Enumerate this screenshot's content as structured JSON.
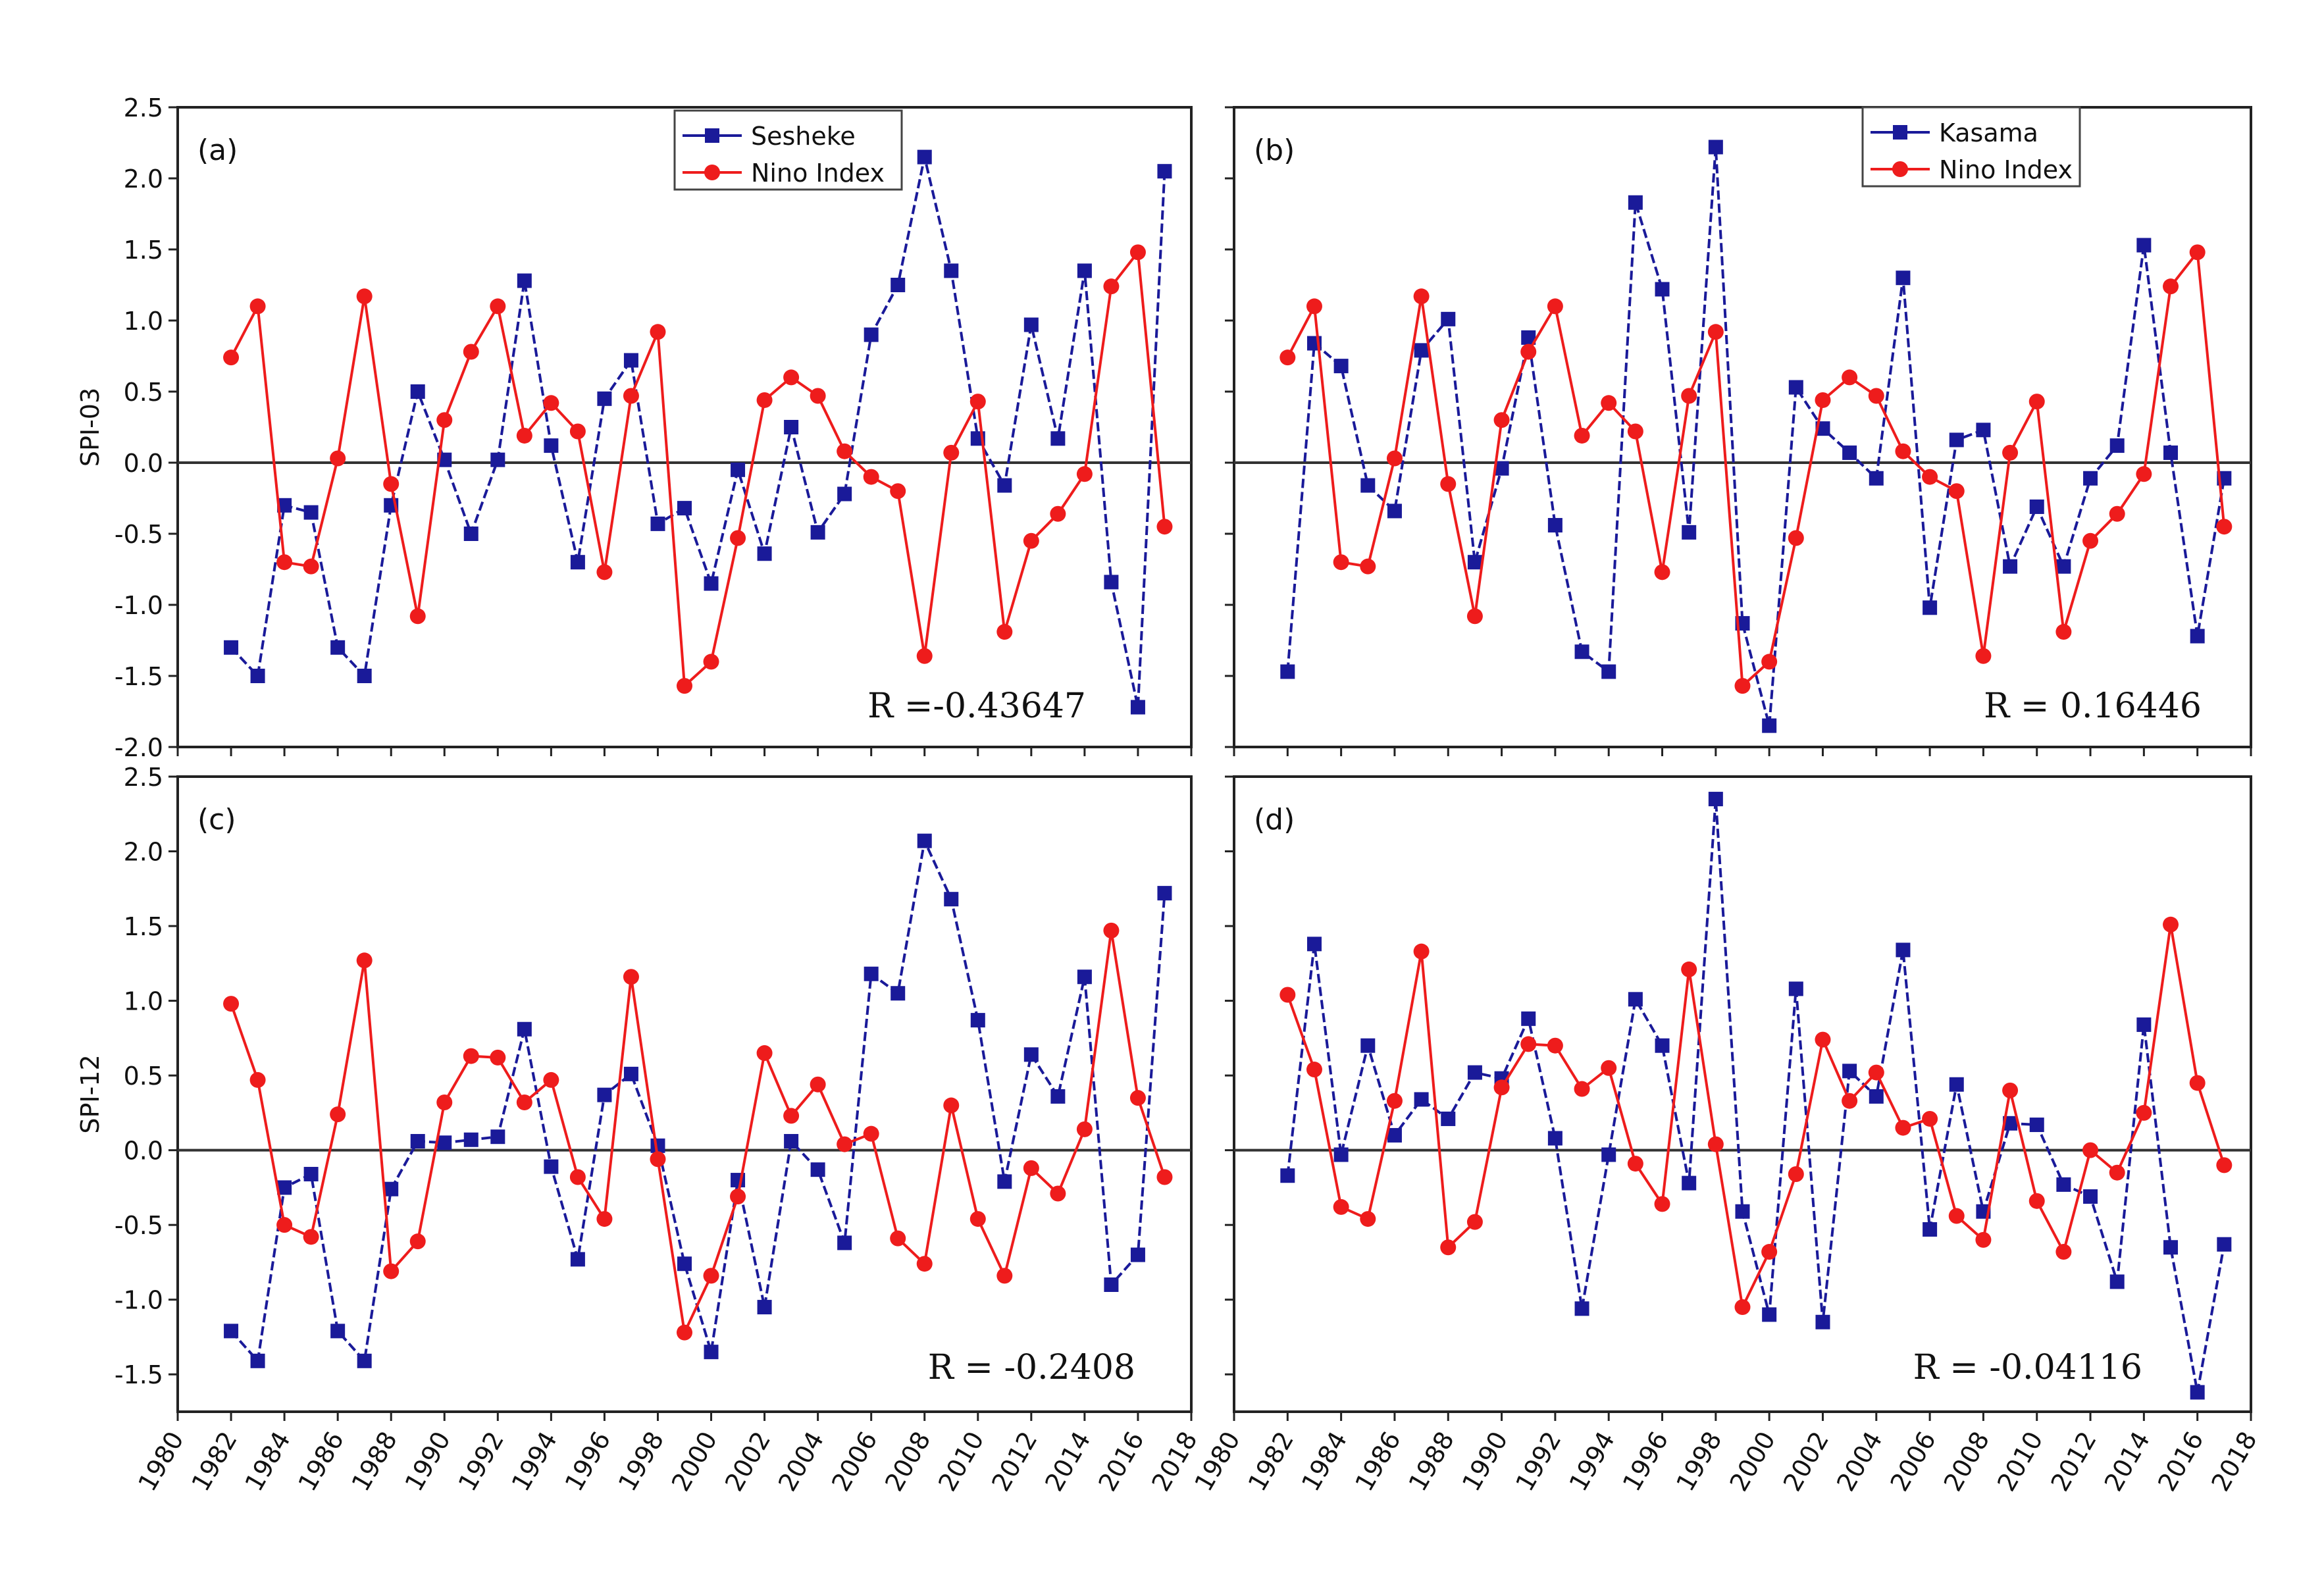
{
  "chart_data": [
    {
      "panel": "(a)",
      "type": "line",
      "ylabel": "SPI-03",
      "xlim": [
        1980,
        2018
      ],
      "ylim": [
        -2.0,
        2.5
      ],
      "yticks": [
        "-2.0",
        "-1.5",
        "-1.0",
        "-0.5",
        "0.0",
        "0.5",
        "1.0",
        "1.5",
        "2.0",
        "2.5"
      ],
      "xticks": [
        "1980",
        "1982",
        "1984",
        "1986",
        "1988",
        "1990",
        "1992",
        "1994",
        "1996",
        "1998",
        "2000",
        "2002",
        "2004",
        "2006",
        "2008",
        "2010",
        "2012",
        "2014",
        "2016",
        "2018"
      ],
      "annotation": "R =-0.43647",
      "series": [
        {
          "name": "Sesheke",
          "color": "#1a1a99",
          "marker": "square",
          "x": [
            1982,
            1983,
            1984,
            1985,
            1986,
            1987,
            1988,
            1989,
            1990,
            1991,
            1992,
            1993,
            1994,
            1995,
            1996,
            1997,
            1998,
            1999,
            2000,
            2001,
            2002,
            2003,
            2004,
            2005,
            2006,
            2007,
            2008,
            2009,
            2010,
            2011,
            2012,
            2013,
            2014,
            2015,
            2016,
            2017
          ],
          "values": [
            -1.3,
            -1.5,
            -0.3,
            -0.35,
            -1.3,
            -1.5,
            -0.3,
            0.5,
            0.02,
            -0.5,
            0.02,
            1.28,
            0.12,
            -0.7,
            0.45,
            0.72,
            -0.43,
            -0.32,
            -0.85,
            -0.05,
            -0.64,
            0.25,
            -0.49,
            -0.22,
            0.9,
            1.25,
            2.15,
            1.35,
            0.17,
            -0.16,
            0.97,
            0.17,
            1.35,
            -0.84,
            -1.72,
            2.05
          ]
        },
        {
          "name": "Nino Index",
          "color": "#ee1c1c",
          "marker": "circle",
          "x": [
            1982,
            1983,
            1984,
            1985,
            1986,
            1987,
            1988,
            1989,
            1990,
            1991,
            1992,
            1993,
            1994,
            1995,
            1996,
            1997,
            1998,
            1999,
            2000,
            2001,
            2002,
            2003,
            2004,
            2005,
            2006,
            2007,
            2008,
            2009,
            2010,
            2011,
            2012,
            2013,
            2014,
            2015,
            2016,
            2017
          ],
          "values": [
            0.74,
            1.1,
            -0.7,
            -0.73,
            0.03,
            1.17,
            -0.15,
            -1.08,
            0.3,
            0.78,
            1.1,
            0.19,
            0.42,
            0.22,
            -0.77,
            0.47,
            0.92,
            -1.57,
            -1.4,
            -0.53,
            0.44,
            0.6,
            0.47,
            0.08,
            -0.1,
            -0.2,
            -1.36,
            0.07,
            0.43,
            -1.19,
            -0.55,
            -0.36,
            -0.08,
            1.24,
            1.48,
            -0.45
          ]
        }
      ]
    },
    {
      "panel": "(b)",
      "type": "line",
      "xlim": [
        1980,
        2018
      ],
      "ylim": [
        -2.0,
        2.5
      ],
      "xticks": [
        "1980",
        "1982",
        "1984",
        "1986",
        "1988",
        "1990",
        "1992",
        "1994",
        "1996",
        "1998",
        "2000",
        "2002",
        "2004",
        "2006",
        "2008",
        "2010",
        "2012",
        "2014",
        "2016",
        "2018"
      ],
      "annotation": "R = 0.16446",
      "series": [
        {
          "name": "Kasama",
          "color": "#1a1a99",
          "marker": "square",
          "x": [
            1982,
            1983,
            1984,
            1985,
            1986,
            1987,
            1988,
            1989,
            1990,
            1991,
            1992,
            1993,
            1994,
            1995,
            1996,
            1997,
            1998,
            1999,
            2000,
            2001,
            2002,
            2003,
            2004,
            2005,
            2006,
            2007,
            2008,
            2009,
            2010,
            2011,
            2012,
            2013,
            2014,
            2015,
            2016,
            2017
          ],
          "values": [
            -1.47,
            0.84,
            0.68,
            -0.16,
            -0.34,
            0.79,
            1.01,
            -0.7,
            -0.04,
            0.88,
            -0.44,
            -1.33,
            -1.47,
            1.83,
            1.22,
            -0.49,
            2.22,
            -1.13,
            -1.85,
            0.53,
            0.24,
            0.07,
            -0.11,
            1.3,
            -1.02,
            0.16,
            0.23,
            -0.73,
            -0.31,
            -0.73,
            -0.11,
            0.12,
            1.53,
            0.07,
            -1.22,
            -0.11
          ]
        },
        {
          "name": "Nino Index",
          "color": "#ee1c1c",
          "marker": "circle",
          "x": [
            1982,
            1983,
            1984,
            1985,
            1986,
            1987,
            1988,
            1989,
            1990,
            1991,
            1992,
            1993,
            1994,
            1995,
            1996,
            1997,
            1998,
            1999,
            2000,
            2001,
            2002,
            2003,
            2004,
            2005,
            2006,
            2007,
            2008,
            2009,
            2010,
            2011,
            2012,
            2013,
            2014,
            2015,
            2016,
            2017
          ],
          "values": [
            0.74,
            1.1,
            -0.7,
            -0.73,
            0.03,
            1.17,
            -0.15,
            -1.08,
            0.3,
            0.78,
            1.1,
            0.19,
            0.42,
            0.22,
            -0.77,
            0.47,
            0.92,
            -1.57,
            -1.4,
            -0.53,
            0.44,
            0.6,
            0.47,
            0.08,
            -0.1,
            -0.2,
            -1.36,
            0.07,
            0.43,
            -1.19,
            -0.55,
            -0.36,
            -0.08,
            1.24,
            1.48,
            -0.45
          ]
        }
      ]
    },
    {
      "panel": "(c)",
      "type": "line",
      "ylabel": "SPI-12",
      "xlim": [
        1980,
        2018
      ],
      "ylim": [
        -1.75,
        2.5
      ],
      "yticks": [
        "-1.5",
        "-1.0",
        "-0.5",
        "0.0",
        "0.5",
        "1.0",
        "1.5",
        "2.0",
        "2.5"
      ],
      "xticks": [
        "1980",
        "1982",
        "1984",
        "1986",
        "1988",
        "1990",
        "1992",
        "1994",
        "1996",
        "1998",
        "2000",
        "2002",
        "2004",
        "2006",
        "2008",
        "2010",
        "2012",
        "2014",
        "2016",
        "2018"
      ],
      "annotation": "R = -0.2408",
      "series": [
        {
          "name": "Sesheke",
          "color": "#1a1a99",
          "marker": "square",
          "x": [
            1982,
            1983,
            1984,
            1985,
            1986,
            1987,
            1988,
            1989,
            1990,
            1991,
            1992,
            1993,
            1994,
            1995,
            1996,
            1997,
            1998,
            1999,
            2000,
            2001,
            2002,
            2003,
            2004,
            2005,
            2006,
            2007,
            2008,
            2009,
            2010,
            2011,
            2012,
            2013,
            2014,
            2015,
            2016,
            2017
          ],
          "values": [
            -1.21,
            -1.41,
            -0.25,
            -0.16,
            -1.21,
            -1.41,
            -0.26,
            0.06,
            0.05,
            0.07,
            0.09,
            0.81,
            -0.11,
            -0.73,
            0.37,
            0.51,
            0.03,
            -0.76,
            -1.35,
            -0.2,
            -1.05,
            0.06,
            -0.13,
            -0.62,
            1.18,
            1.05,
            2.07,
            1.68,
            0.87,
            -0.21,
            0.64,
            0.36,
            1.16,
            -0.9,
            -0.7,
            1.72
          ]
        },
        {
          "name": "Nino Index",
          "color": "#ee1c1c",
          "marker": "circle",
          "x": [
            1982,
            1983,
            1984,
            1985,
            1986,
            1987,
            1988,
            1989,
            1990,
            1991,
            1992,
            1993,
            1994,
            1995,
            1996,
            1997,
            1998,
            1999,
            2000,
            2001,
            2002,
            2003,
            2004,
            2005,
            2006,
            2007,
            2008,
            2009,
            2010,
            2011,
            2012,
            2013,
            2014,
            2015,
            2016,
            2017
          ],
          "values": [
            0.98,
            0.47,
            -0.5,
            -0.58,
            0.24,
            1.27,
            -0.81,
            -0.61,
            0.32,
            0.63,
            0.62,
            0.32,
            0.47,
            -0.18,
            -0.46,
            1.16,
            -0.06,
            -1.22,
            -0.84,
            -0.31,
            0.65,
            0.23,
            0.44,
            0.04,
            0.11,
            -0.59,
            -0.76,
            0.3,
            -0.46,
            -0.84,
            -0.12,
            -0.29,
            0.14,
            1.47,
            0.35,
            -0.18
          ]
        }
      ]
    },
    {
      "panel": "(d)",
      "type": "line",
      "xlim": [
        1980,
        2018
      ],
      "ylim": [
        -1.75,
        2.5
      ],
      "xticks": [
        "1980",
        "1982",
        "1984",
        "1986",
        "1988",
        "1990",
        "1992",
        "1994",
        "1996",
        "1998",
        "2000",
        "2002",
        "2004",
        "2006",
        "2008",
        "2010",
        "2012",
        "2014",
        "2016",
        "2018"
      ],
      "annotation": "R = -0.04116",
      "series": [
        {
          "name": "Kasama",
          "color": "#1a1a99",
          "marker": "square",
          "x": [
            1982,
            1983,
            1984,
            1985,
            1986,
            1987,
            1988,
            1989,
            1990,
            1991,
            1992,
            1993,
            1994,
            1995,
            1996,
            1997,
            1998,
            1999,
            2000,
            2001,
            2002,
            2003,
            2004,
            2005,
            2006,
            2007,
            2008,
            2009,
            2010,
            2011,
            2012,
            2013,
            2014,
            2015,
            2016,
            2017
          ],
          "values": [
            -0.17,
            1.38,
            -0.03,
            0.7,
            0.1,
            0.34,
            0.21,
            0.52,
            0.48,
            0.88,
            0.08,
            -1.06,
            -0.03,
            1.01,
            0.7,
            -0.22,
            2.35,
            -0.41,
            -1.1,
            1.08,
            -1.15,
            0.53,
            0.36,
            1.34,
            -0.53,
            0.44,
            -0.41,
            0.18,
            0.17,
            -0.23,
            -0.31,
            -0.88,
            0.84,
            -0.65,
            -1.62,
            -0.63
          ]
        },
        {
          "name": "Nino Index",
          "color": "#ee1c1c",
          "marker": "circle",
          "x": [
            1982,
            1983,
            1984,
            1985,
            1986,
            1987,
            1988,
            1989,
            1990,
            1991,
            1992,
            1993,
            1994,
            1995,
            1996,
            1997,
            1998,
            1999,
            2000,
            2001,
            2002,
            2003,
            2004,
            2005,
            2006,
            2007,
            2008,
            2009,
            2010,
            2011,
            2012,
            2013,
            2014,
            2015,
            2016,
            2017
          ],
          "values": [
            1.04,
            0.54,
            -0.38,
            -0.46,
            0.33,
            1.33,
            -0.65,
            -0.48,
            0.42,
            0.71,
            0.7,
            0.41,
            0.55,
            -0.09,
            -0.36,
            1.21,
            0.04,
            -1.05,
            -0.68,
            -0.16,
            0.74,
            0.33,
            0.52,
            0.15,
            0.21,
            -0.44,
            -0.6,
            0.4,
            -0.34,
            -0.68,
            0.0,
            -0.15,
            0.25,
            1.51,
            0.45,
            -0.1
          ]
        }
      ]
    }
  ]
}
